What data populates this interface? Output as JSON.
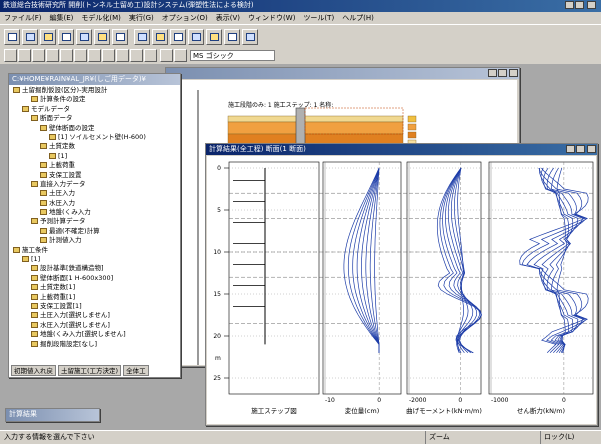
{
  "window": {
    "title": "鉄道総合技術研究所 開削(トンネル土留め工)設計システム(弾塑性法による検討)",
    "menu": [
      "ファイル(F)",
      "編集(E)",
      "モデル化(M)",
      "実行(G)",
      "オプション(O)",
      "表示(V)",
      "ウィンドウ(W)",
      "ツール(T)",
      "ヘルプ(H)"
    ]
  },
  "toolbar": {
    "font": "MS ゴシック"
  },
  "tree_window": {
    "title": "C:¥HOME¥RAIN¥AL_JR¥(しご用データ)¥",
    "items": [
      "土留掘削仮設(区分)-実用設計",
      "計算条件の設定",
      "モデルデータ",
      "断面データ",
      "壁体断面の設定",
      "[1] ソイルセメント壁(H-600)",
      "土質定数",
      "[1]",
      "上載荷重",
      "支保工設置",
      "直接入力データ",
      "土圧入力",
      "水圧入力",
      "地盤(くみ入力",
      "予測計算データ",
      "最適(不確定)計算",
      "計測値入力",
      "施工条件",
      "[1]",
      "設計基準[鉄道構造物]",
      "壁体断面[1 H-600x300]",
      "土質定数[1]",
      "上載荷重[1]",
      "支保工設置[1]",
      "土圧入力[選択しません]",
      "水圧入力[選択しません]",
      "地盤(くみ入力[選択しません]",
      "掘削段階設定[なし]"
    ],
    "tabs": [
      "初期値入れ戻",
      "土留施工(工方決定)",
      "全体工"
    ]
  },
  "section_window": {
    "header": "施工段階のみ: 1   施工ステップ: 1   名称:"
  },
  "result_window": {
    "title": "計算結果(全工程) 断面(1 断面)",
    "depth_ticks": [
      0,
      5,
      10,
      15,
      20,
      25
    ],
    "depth_unit": "m",
    "panels": [
      {
        "label": "施工ステップ図"
      },
      {
        "label": "変位量(cm)",
        "ticks": [
          -10,
          0
        ]
      },
      {
        "label": "曲げモーメント(kN·m/m)",
        "ticks": [
          -2000,
          0
        ]
      },
      {
        "label": "せん断力(kN/m)",
        "ticks": [
          -1000,
          0
        ]
      }
    ]
  },
  "minimized": {
    "title": "計算結果"
  },
  "status": {
    "message": "入力する情報を選んで下さい",
    "zoom": "ズーム",
    "lock": "ロック(L)"
  }
}
